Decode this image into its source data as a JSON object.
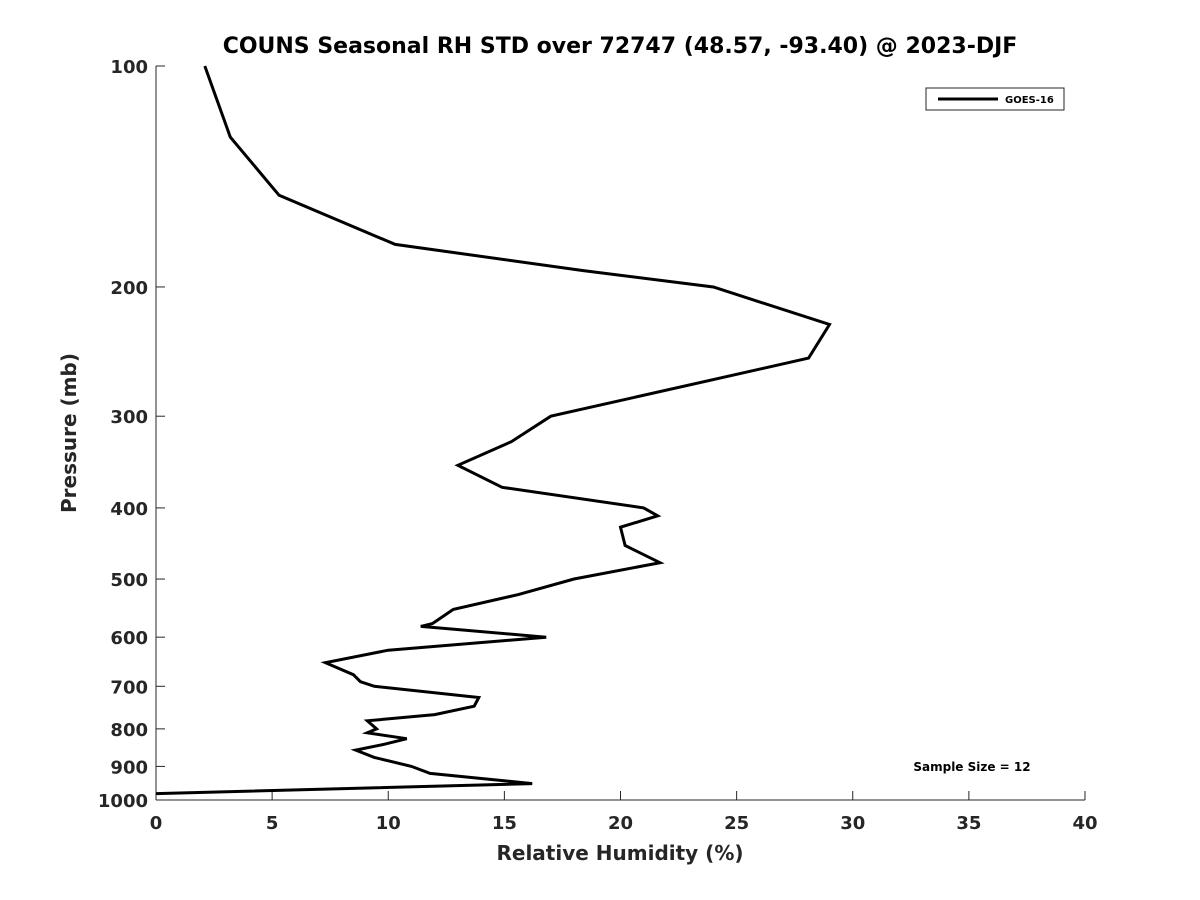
{
  "chart_data": {
    "type": "line",
    "title": "COUNS Seasonal RH STD over 72747 (48.57, -93.40) @ 2023-DJF",
    "xlabel": "Relative Humidity (%)",
    "ylabel": "Pressure (mb)",
    "xlim": [
      0,
      40
    ],
    "ylim": [
      100,
      1000
    ],
    "y_scale": "log",
    "y_reversed": true,
    "x_ticks": [
      0,
      5,
      10,
      15,
      20,
      25,
      30,
      35,
      40
    ],
    "y_ticks": [
      100,
      200,
      300,
      400,
      500,
      600,
      700,
      800,
      900,
      1000
    ],
    "grid": false,
    "legend_position": "top-right",
    "annotation": "Sample Size = 12",
    "series": [
      {
        "name": "GOES-16",
        "color": "#000000",
        "points": [
          [
            2.1,
            100
          ],
          [
            3.2,
            125
          ],
          [
            5.3,
            150
          ],
          [
            10.3,
            175
          ],
          [
            18.4,
            190
          ],
          [
            24.0,
            200
          ],
          [
            29.0,
            225
          ],
          [
            28.1,
            250
          ],
          [
            17.0,
            300
          ],
          [
            15.3,
            325
          ],
          [
            13.0,
            350
          ],
          [
            14.9,
            375
          ],
          [
            21.0,
            400
          ],
          [
            21.6,
            410
          ],
          [
            20.0,
            425
          ],
          [
            20.2,
            450
          ],
          [
            21.7,
            475
          ],
          [
            18.0,
            500
          ],
          [
            15.6,
            525
          ],
          [
            12.8,
            550
          ],
          [
            11.9,
            575
          ],
          [
            11.4,
            580
          ],
          [
            16.8,
            600
          ],
          [
            10.0,
            625
          ],
          [
            7.3,
            650
          ],
          [
            8.5,
            675
          ],
          [
            8.8,
            690
          ],
          [
            9.4,
            700
          ],
          [
            13.9,
            725
          ],
          [
            13.7,
            745
          ],
          [
            12.0,
            765
          ],
          [
            9.1,
            780
          ],
          [
            9.5,
            800
          ],
          [
            9.1,
            810
          ],
          [
            10.8,
            825
          ],
          [
            9.8,
            840
          ],
          [
            8.6,
            855
          ],
          [
            9.4,
            875
          ],
          [
            11.0,
            900
          ],
          [
            11.8,
            920
          ],
          [
            16.2,
            950
          ],
          [
            0.0,
            980
          ]
        ]
      }
    ]
  }
}
